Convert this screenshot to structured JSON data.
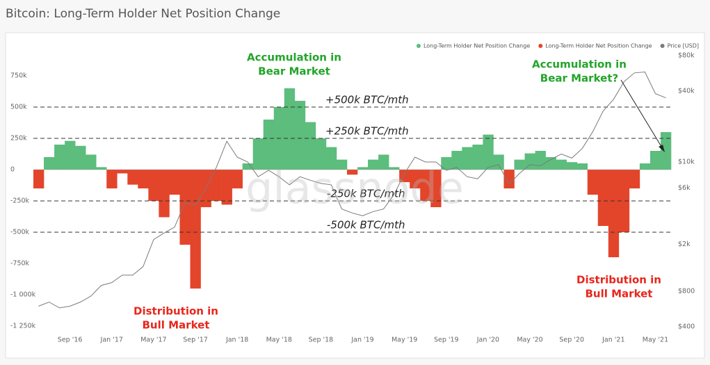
{
  "chart_data": {
    "type": "bar",
    "title": "Bitcoin: Long-Term Holder Net Position Change",
    "watermark": "glassnode",
    "legend": "top-right",
    "x": [
      "2016-06",
      "2016-07",
      "2016-08",
      "2016-09",
      "2016-10",
      "2016-11",
      "2016-12",
      "2017-01",
      "2017-02",
      "2017-03",
      "2017-04",
      "2017-05",
      "2017-06",
      "2017-07",
      "2017-08",
      "2017-09",
      "2017-10",
      "2017-11",
      "2017-12",
      "2018-01",
      "2018-02",
      "2018-03",
      "2018-04",
      "2018-05",
      "2018-06",
      "2018-07",
      "2018-08",
      "2018-09",
      "2018-10",
      "2018-11",
      "2018-12",
      "2019-01",
      "2019-02",
      "2019-03",
      "2019-04",
      "2019-05",
      "2019-06",
      "2019-07",
      "2019-08",
      "2019-09",
      "2019-10",
      "2019-11",
      "2019-12",
      "2020-01",
      "2020-02",
      "2020-03",
      "2020-04",
      "2020-05",
      "2020-06",
      "2020-07",
      "2020-08",
      "2020-09",
      "2020-10",
      "2020-11",
      "2020-12",
      "2021-01",
      "2021-02",
      "2021-03",
      "2021-04",
      "2021-05",
      "2021-06"
    ],
    "series": [
      {
        "name": "Long-Term Holder Net Position Change",
        "color": "#5cbd7d",
        "values": [
          null,
          100000,
          200000,
          230000,
          190000,
          120000,
          20000,
          null,
          null,
          null,
          null,
          null,
          null,
          null,
          null,
          null,
          null,
          null,
          null,
          null,
          50000,
          250000,
          400000,
          500000,
          650000,
          550000,
          380000,
          250000,
          180000,
          80000,
          null,
          20000,
          80000,
          120000,
          20000,
          null,
          null,
          null,
          null,
          100000,
          150000,
          180000,
          200000,
          280000,
          120000,
          null,
          80000,
          130000,
          150000,
          100000,
          80000,
          60000,
          50000,
          null,
          null,
          null,
          null,
          null,
          50000,
          150000,
          300000
        ]
      },
      {
        "name": "Long-Term Holder Net Position Change",
        "color": "#e3452b",
        "values": [
          -150000,
          null,
          null,
          null,
          null,
          null,
          null,
          -150000,
          -30000,
          -120000,
          -150000,
          -250000,
          -380000,
          -200000,
          -600000,
          -950000,
          -300000,
          -250000,
          -280000,
          -150000,
          null,
          null,
          null,
          null,
          null,
          null,
          null,
          null,
          null,
          null,
          -40000,
          null,
          null,
          null,
          null,
          -100000,
          -150000,
          -250000,
          -300000,
          null,
          null,
          null,
          null,
          null,
          null,
          -150000,
          null,
          null,
          null,
          null,
          null,
          null,
          null,
          -200000,
          -450000,
          -700000,
          -500000,
          -150000,
          null,
          null,
          null
        ]
      },
      {
        "name": "Price [USD]",
        "color": "#7a7a7a",
        "type": "line",
        "axis": "y2",
        "values": [
          600,
          650,
          580,
          600,
          650,
          730,
          900,
          950,
          1100,
          1100,
          1300,
          2200,
          2500,
          2800,
          4500,
          4300,
          6000,
          9000,
          15000,
          11000,
          10000,
          7500,
          8500,
          7500,
          6400,
          7500,
          7000,
          6600,
          6400,
          4000,
          3700,
          3500,
          3800,
          4000,
          5300,
          8000,
          11000,
          10000,
          10000,
          8500,
          9000,
          7500,
          7200,
          9000,
          9500,
          6500,
          8000,
          9500,
          9300,
          10500,
          11700,
          10800,
          13000,
          18000,
          27000,
          34000,
          48000,
          57000,
          58000,
          38000,
          35000
        ]
      }
    ],
    "xticks": [
      {
        "value": "2016-09",
        "label": "Sep '16"
      },
      {
        "value": "2017-01",
        "label": "Jan '17"
      },
      {
        "value": "2017-05",
        "label": "May '17"
      },
      {
        "value": "2017-09",
        "label": "Sep '17"
      },
      {
        "value": "2018-01",
        "label": "Jan '18"
      },
      {
        "value": "2018-05",
        "label": "May '18"
      },
      {
        "value": "2018-09",
        "label": "Sep '18"
      },
      {
        "value": "2019-01",
        "label": "Jan '19"
      },
      {
        "value": "2019-05",
        "label": "May '19"
      },
      {
        "value": "2019-09",
        "label": "Sep '19"
      },
      {
        "value": "2020-01",
        "label": "Jan '20"
      },
      {
        "value": "2020-05",
        "label": "May '20"
      },
      {
        "value": "2020-09",
        "label": "Sep '20"
      },
      {
        "value": "2021-01",
        "label": "Jan '21"
      },
      {
        "value": "2021-05",
        "label": "May '21"
      }
    ],
    "ylim": [
      -1300000,
      1050000
    ],
    "yticks": [
      {
        "value": 750000,
        "label": "750k"
      },
      {
        "value": 500000,
        "label": "500k"
      },
      {
        "value": 250000,
        "label": "250k"
      },
      0,
      {
        "value": -250000,
        "label": "-250k"
      },
      {
        "value": -500000,
        "label": "-500k"
      },
      {
        "value": -750000,
        "label": "-750k"
      },
      {
        "value": -1000000,
        "label": "-1 000k"
      },
      {
        "value": -1250000,
        "label": "-1 250k"
      }
    ],
    "y2lim": [
      360,
      112000
    ],
    "y2log": true,
    "y2ticks": [
      {
        "value": 80000,
        "label": "$80k"
      },
      {
        "value": 40000,
        "label": "$40k"
      },
      {
        "value": 10000,
        "label": "$10k"
      },
      {
        "value": 6000,
        "label": "$6k"
      },
      {
        "value": 2000,
        "label": "$2k"
      },
      {
        "value": 800,
        "label": "$800"
      },
      {
        "value": 400,
        "label": "$400"
      }
    ],
    "reference_lines": [
      {
        "value": 500000,
        "label": "+500k BTC/mth"
      },
      {
        "value": 250000,
        "label": "+250k BTC/mth"
      },
      {
        "value": -250000,
        "label": "-250k BTC/mth"
      },
      {
        "value": -500000,
        "label": "-500k BTC/mth"
      }
    ],
    "annotations": [
      {
        "lines": [
          "Accumulation in",
          "Bear Market"
        ],
        "color": "#23a42a"
      },
      {
        "lines": [
          "Accumulation in",
          "Bear Market?"
        ],
        "color": "#23a42a"
      },
      {
        "lines": [
          "Distribution in",
          "Bull Market"
        ],
        "color": "#e8261c"
      },
      {
        "lines": [
          "Distribution in",
          "Bull Market"
        ],
        "color": "#e8261c"
      }
    ]
  }
}
